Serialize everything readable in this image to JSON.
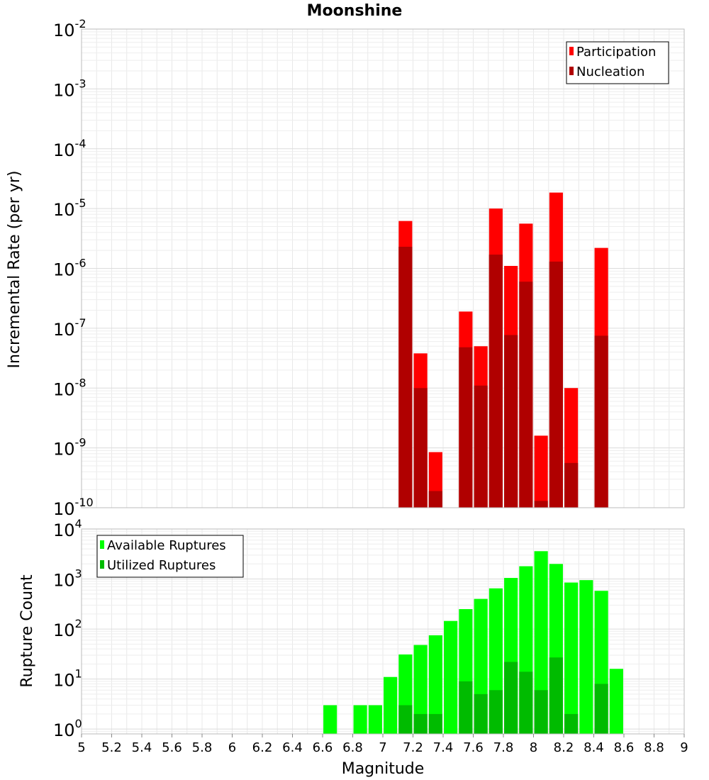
{
  "chart_data": [
    {
      "type": "bar",
      "title": "Moonshine",
      "xlabel": "",
      "ylabel": "Incremental Rate (per yr)",
      "yscale": "log",
      "ylim": [
        1e-10,
        0.01
      ],
      "xlim": [
        5,
        9
      ],
      "yticks": [
        {
          "base": "10",
          "exp": "-10",
          "value": 1e-10
        },
        {
          "base": "10",
          "exp": "-9",
          "value": 1e-09
        },
        {
          "base": "10",
          "exp": "-8",
          "value": 1e-08
        },
        {
          "base": "10",
          "exp": "-7",
          "value": 1e-07
        },
        {
          "base": "10",
          "exp": "-6",
          "value": 1e-06
        },
        {
          "base": "10",
          "exp": "-5",
          "value": 1e-05
        },
        {
          "base": "10",
          "exp": "-4",
          "value": 0.0001
        },
        {
          "base": "10",
          "exp": "-3",
          "value": 0.001
        },
        {
          "base": "10",
          "exp": "-2",
          "value": 0.01
        }
      ],
      "grid": true,
      "legend_position": "top-right",
      "series": [
        {
          "name": "Participation",
          "color": "#ff0000",
          "points": [
            {
              "x": 7.15,
              "y": 6.2e-06
            },
            {
              "x": 7.25,
              "y": 3.8e-08
            },
            {
              "x": 7.35,
              "y": 8.5e-10
            },
            {
              "x": 7.55,
              "y": 1.9e-07
            },
            {
              "x": 7.65,
              "y": 5e-08
            },
            {
              "x": 7.75,
              "y": 1e-05
            },
            {
              "x": 7.85,
              "y": 1.1e-06
            },
            {
              "x": 7.95,
              "y": 5.6e-06
            },
            {
              "x": 8.05,
              "y": 1.6e-09
            },
            {
              "x": 8.15,
              "y": 1.85e-05
            },
            {
              "x": 8.25,
              "y": 1e-08
            },
            {
              "x": 8.45,
              "y": 2.2e-06
            }
          ]
        },
        {
          "name": "Nucleation",
          "color": "#b00000",
          "points": [
            {
              "x": 7.15,
              "y": 2.3e-06
            },
            {
              "x": 7.25,
              "y": 1e-08
            },
            {
              "x": 7.35,
              "y": 1.9e-10
            },
            {
              "x": 7.55,
              "y": 4.8e-08
            },
            {
              "x": 7.65,
              "y": 1.1e-08
            },
            {
              "x": 7.75,
              "y": 1.7e-06
            },
            {
              "x": 7.85,
              "y": 7.7e-08
            },
            {
              "x": 7.95,
              "y": 6e-07
            },
            {
              "x": 8.05,
              "y": 1.3e-10
            },
            {
              "x": 8.15,
              "y": 1.3e-06
            },
            {
              "x": 8.25,
              "y": 5.6e-10
            },
            {
              "x": 8.45,
              "y": 7.5e-08
            }
          ]
        }
      ]
    },
    {
      "type": "bar",
      "xlabel": "Magnitude",
      "ylabel": "Rupture Count",
      "yscale": "log",
      "ylim": [
        0.8,
        10000
      ],
      "xlim": [
        5,
        9
      ],
      "xticks": [
        "5",
        "5.2",
        "5.4",
        "5.6",
        "5.8",
        "6",
        "6.2",
        "6.4",
        "6.6",
        "6.8",
        "7",
        "7.2",
        "7.4",
        "7.6",
        "7.8",
        "8",
        "8.2",
        "8.4",
        "8.6",
        "8.8",
        "9"
      ],
      "yticks": [
        {
          "base": "10",
          "exp": "0",
          "value": 1
        },
        {
          "base": "10",
          "exp": "1",
          "value": 10
        },
        {
          "base": "10",
          "exp": "2",
          "value": 100
        },
        {
          "base": "10",
          "exp": "3",
          "value": 1000
        },
        {
          "base": "10",
          "exp": "4",
          "value": 10000
        }
      ],
      "grid": true,
      "legend_position": "top-left",
      "series": [
        {
          "name": "Available Ruptures",
          "color": "#00ff00",
          "points": [
            {
              "x": 6.65,
              "y": 3
            },
            {
              "x": 6.85,
              "y": 3
            },
            {
              "x": 6.95,
              "y": 3
            },
            {
              "x": 7.05,
              "y": 11
            },
            {
              "x": 7.15,
              "y": 31
            },
            {
              "x": 7.25,
              "y": 48
            },
            {
              "x": 7.35,
              "y": 75
            },
            {
              "x": 7.45,
              "y": 145
            },
            {
              "x": 7.55,
              "y": 250
            },
            {
              "x": 7.65,
              "y": 400
            },
            {
              "x": 7.75,
              "y": 650
            },
            {
              "x": 7.85,
              "y": 1050
            },
            {
              "x": 7.95,
              "y": 1800
            },
            {
              "x": 8.05,
              "y": 3600
            },
            {
              "x": 8.15,
              "y": 2000
            },
            {
              "x": 8.25,
              "y": 850
            },
            {
              "x": 8.35,
              "y": 950
            },
            {
              "x": 8.45,
              "y": 580
            },
            {
              "x": 8.55,
              "y": 16
            }
          ]
        },
        {
          "name": "Utilized Ruptures",
          "color": "#00bb00",
          "points": [
            {
              "x": 7.15,
              "y": 3
            },
            {
              "x": 7.25,
              "y": 2
            },
            {
              "x": 7.35,
              "y": 2
            },
            {
              "x": 7.55,
              "y": 9
            },
            {
              "x": 7.65,
              "y": 5
            },
            {
              "x": 7.75,
              "y": 6
            },
            {
              "x": 7.85,
              "y": 22
            },
            {
              "x": 7.95,
              "y": 14
            },
            {
              "x": 8.05,
              "y": 6
            },
            {
              "x": 8.15,
              "y": 27
            },
            {
              "x": 8.25,
              "y": 2
            },
            {
              "x": 8.45,
              "y": 8
            }
          ]
        }
      ]
    }
  ]
}
